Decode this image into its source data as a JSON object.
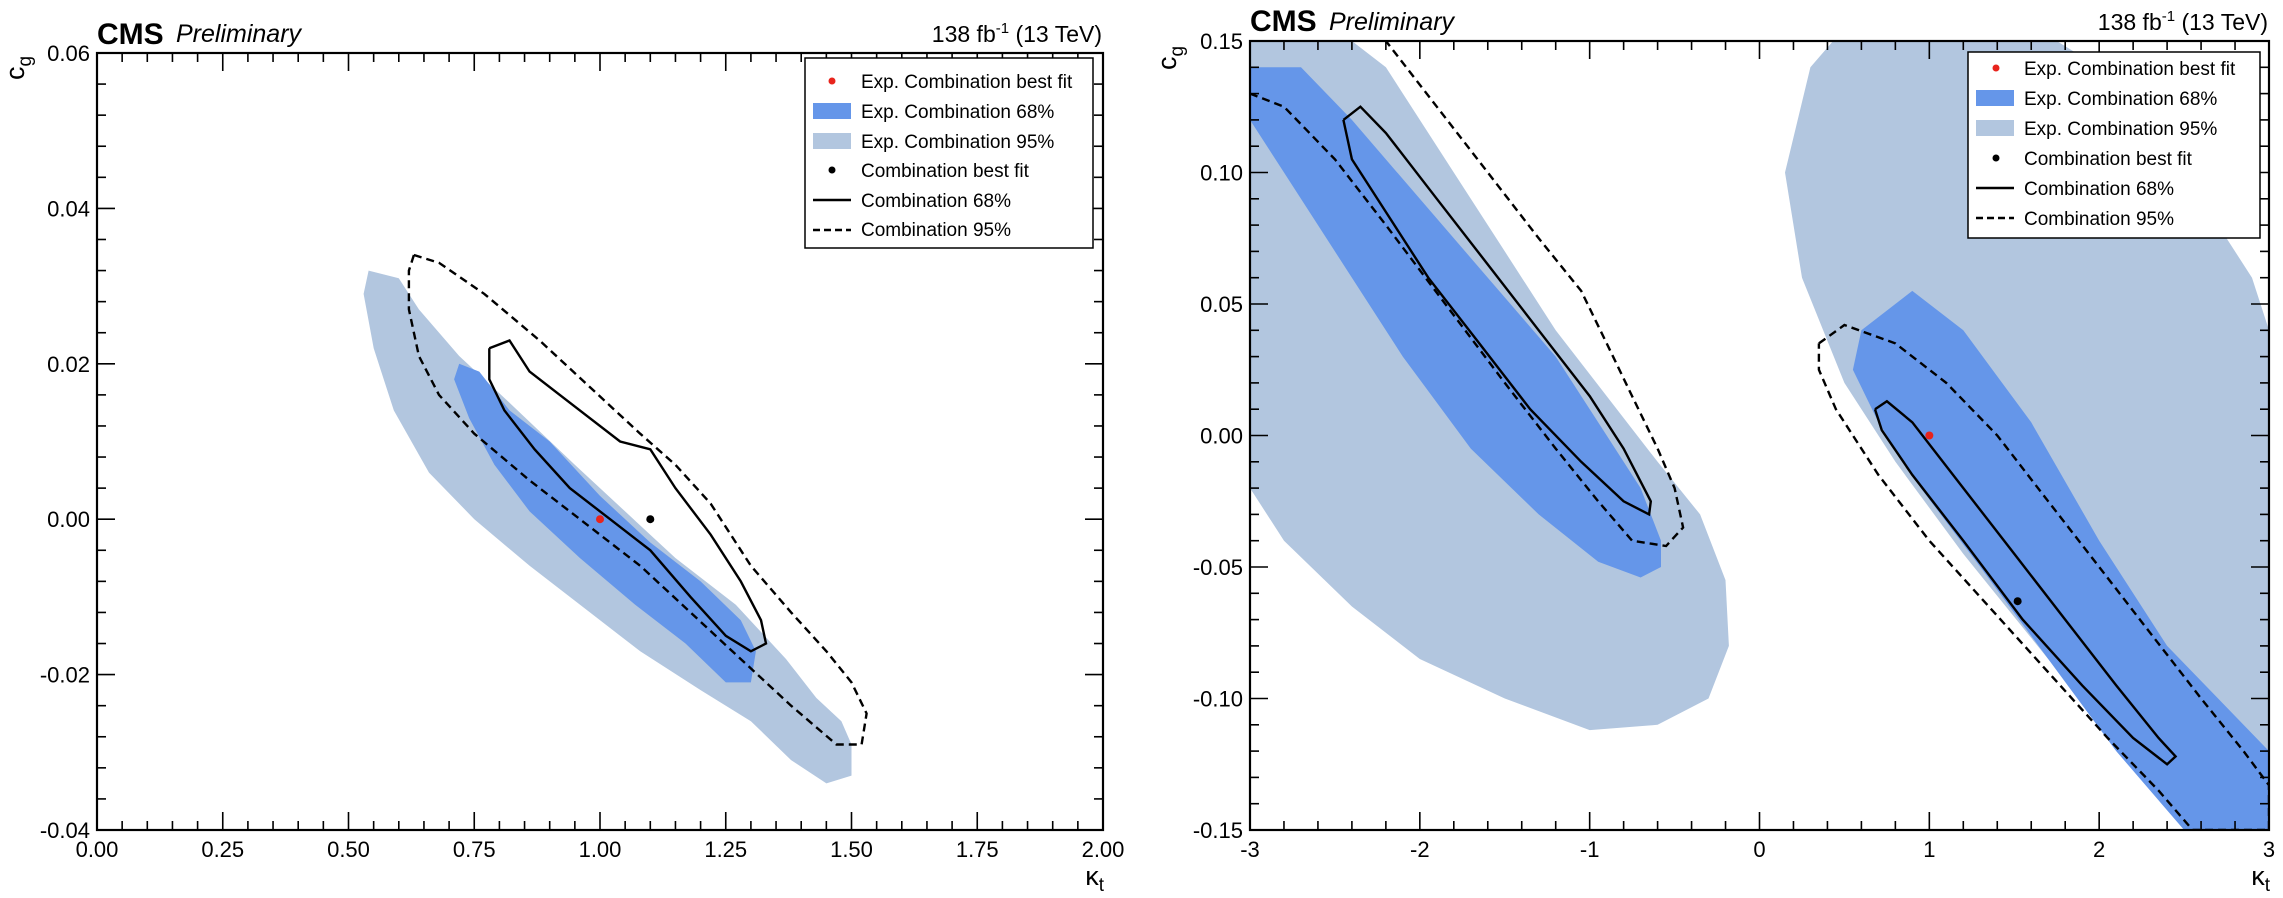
{
  "colors": {
    "exp68": "#6596e9",
    "exp95": "#b2c6df",
    "bestfit_exp": "#e8241c",
    "bestfit_obs": "#000000"
  },
  "chart_data": [
    {
      "type": "contour",
      "header": {
        "experiment": "CMS",
        "status": "Preliminary",
        "lumi": "138 fb",
        "lumi_exp": "-1",
        "energy": "(13 TeV)"
      },
      "xlabel": "κ",
      "xlabel_sub": "t",
      "ylabel": "c",
      "ylabel_sub": "g",
      "xlim": [
        0.0,
        2.0
      ],
      "ylim": [
        -0.04,
        0.06
      ],
      "xticks": [
        0.0,
        0.25,
        0.5,
        0.75,
        1.0,
        1.25,
        1.5,
        1.75,
        2.0
      ],
      "xtick_labels": [
        "0.00",
        "0.25",
        "0.50",
        "0.75",
        "1.00",
        "1.25",
        "1.50",
        "1.75",
        "2.00"
      ],
      "yticks": [
        -0.04,
        -0.02,
        0.0,
        0.02,
        0.04,
        0.06
      ],
      "ytick_labels": [
        "-0.04",
        "-0.02",
        "0.00",
        "0.02",
        "0.04",
        "0.06"
      ],
      "legend": [
        "Exp. Combination best fit",
        "Exp. Combination 68%",
        "Exp. Combination 95%",
        "Combination best fit",
        "Combination 68%",
        "Combination 95%"
      ],
      "legend_position": "top-right",
      "points": {
        "exp_bestfit": [
          1.0,
          0.0
        ],
        "obs_bestfit": [
          1.1,
          0.0
        ]
      },
      "regions": {
        "exp95": [
          [
            [
              0.54,
              0.032
            ],
            [
              0.6,
              0.031
            ],
            [
              0.64,
              0.027
            ],
            [
              0.72,
              0.021
            ],
            [
              0.82,
              0.015
            ],
            [
              0.95,
              0.007
            ],
            [
              1.05,
              0.001
            ],
            [
              1.15,
              -0.005
            ],
            [
              1.27,
              -0.011
            ],
            [
              1.37,
              -0.018
            ],
            [
              1.43,
              -0.023
            ],
            [
              1.48,
              -0.026
            ],
            [
              1.5,
              -0.029
            ],
            [
              1.5,
              -0.033
            ],
            [
              1.45,
              -0.034
            ],
            [
              1.38,
              -0.031
            ],
            [
              1.3,
              -0.026
            ],
            [
              1.2,
              -0.022
            ],
            [
              1.08,
              -0.017
            ],
            [
              0.98,
              -0.012
            ],
            [
              0.86,
              -0.006
            ],
            [
              0.75,
              0.0
            ],
            [
              0.66,
              0.006
            ],
            [
              0.59,
              0.014
            ],
            [
              0.55,
              0.022
            ],
            [
              0.53,
              0.029
            ]
          ]
        ],
        "exp68": [
          [
            [
              0.72,
              0.02
            ],
            [
              0.76,
              0.019
            ],
            [
              0.82,
              0.014
            ],
            [
              0.9,
              0.01
            ],
            [
              1.0,
              0.003
            ],
            [
              1.1,
              -0.003
            ],
            [
              1.2,
              -0.008
            ],
            [
              1.28,
              -0.013
            ],
            [
              1.31,
              -0.017
            ],
            [
              1.3,
              -0.021
            ],
            [
              1.25,
              -0.021
            ],
            [
              1.17,
              -0.016
            ],
            [
              1.07,
              -0.011
            ],
            [
              0.96,
              -0.005
            ],
            [
              0.86,
              0.001
            ],
            [
              0.79,
              0.007
            ],
            [
              0.74,
              0.013
            ],
            [
              0.71,
              0.018
            ]
          ]
        ]
      },
      "lines": {
        "obs68": [
          [
            0.78,
            0.022
          ],
          [
            0.82,
            0.023
          ],
          [
            0.86,
            0.019
          ],
          [
            0.92,
            0.016
          ],
          [
            0.98,
            0.013
          ],
          [
            1.04,
            0.01
          ],
          [
            1.1,
            0.009
          ],
          [
            1.15,
            0.004
          ],
          [
            1.22,
            -0.002
          ],
          [
            1.28,
            -0.008
          ],
          [
            1.32,
            -0.013
          ],
          [
            1.33,
            -0.016
          ],
          [
            1.3,
            -0.017
          ],
          [
            1.25,
            -0.015
          ],
          [
            1.18,
            -0.01
          ],
          [
            1.1,
            -0.004
          ],
          [
            1.02,
            0.0
          ],
          [
            0.94,
            0.004
          ],
          [
            0.87,
            0.009
          ],
          [
            0.81,
            0.014
          ],
          [
            0.78,
            0.018
          ],
          [
            0.78,
            0.022
          ]
        ],
        "obs95": [
          [
            0.63,
            0.034
          ],
          [
            0.68,
            0.033
          ],
          [
            0.77,
            0.029
          ],
          [
            0.88,
            0.023
          ],
          [
            0.98,
            0.017
          ],
          [
            1.08,
            0.011
          ],
          [
            1.15,
            0.007
          ],
          [
            1.22,
            0.002
          ],
          [
            1.3,
            -0.006
          ],
          [
            1.38,
            -0.012
          ],
          [
            1.45,
            -0.017
          ],
          [
            1.5,
            -0.021
          ],
          [
            1.53,
            -0.025
          ],
          [
            1.52,
            -0.029
          ],
          [
            1.47,
            -0.029
          ],
          [
            1.38,
            -0.024
          ],
          [
            1.28,
            -0.018
          ],
          [
            1.18,
            -0.012
          ],
          [
            1.08,
            -0.006
          ],
          [
            0.96,
            0.0
          ],
          [
            0.86,
            0.005
          ],
          [
            0.75,
            0.011
          ],
          [
            0.68,
            0.016
          ],
          [
            0.64,
            0.021
          ],
          [
            0.62,
            0.027
          ],
          [
            0.62,
            0.032
          ],
          [
            0.63,
            0.034
          ]
        ]
      }
    },
    {
      "type": "contour",
      "header": {
        "experiment": "CMS",
        "status": "Preliminary",
        "lumi": "138 fb",
        "lumi_exp": "-1",
        "energy": "(13 TeV)"
      },
      "xlabel": "κ",
      "xlabel_sub": "t",
      "ylabel": "c",
      "ylabel_sub": "g",
      "xlim": [
        -3,
        3
      ],
      "ylim": [
        -0.15,
        0.15
      ],
      "xticks": [
        -3,
        -2,
        -1,
        0,
        1,
        2,
        3
      ],
      "xtick_labels": [
        "-3",
        "-2",
        "-1",
        "0",
        "1",
        "2",
        "3"
      ],
      "yticks": [
        -0.15,
        -0.1,
        -0.05,
        0.0,
        0.05,
        0.1,
        0.15
      ],
      "ytick_labels": [
        "-0.15",
        "-0.10",
        "-0.05",
        "0.00",
        "0.05",
        "0.10",
        "0.15"
      ],
      "legend": [
        "Exp. Combination best fit",
        "Exp. Combination 68%",
        "Exp. Combination 95%",
        "Combination best fit",
        "Combination 68%",
        "Combination 95%"
      ],
      "legend_position": "top-right",
      "points": {
        "exp_bestfit": [
          1.0,
          0.0
        ],
        "obs_bestfit": [
          1.52,
          -0.063
        ]
      },
      "regions": {
        "exp95": [
          [
            [
              -3,
              0.15
            ],
            [
              -2.4,
              0.15
            ],
            [
              -2.2,
              0.14
            ],
            [
              -1.8,
              0.1
            ],
            [
              -1.5,
              0.07
            ],
            [
              -1.2,
              0.04
            ],
            [
              -0.9,
              0.015
            ],
            [
              -0.6,
              -0.01
            ],
            [
              -0.35,
              -0.03
            ],
            [
              -0.2,
              -0.055
            ],
            [
              -0.18,
              -0.08
            ],
            [
              -0.3,
              -0.1
            ],
            [
              -0.6,
              -0.11
            ],
            [
              -1.0,
              -0.112
            ],
            [
              -1.5,
              -0.1
            ],
            [
              -2.0,
              -0.085
            ],
            [
              -2.4,
              -0.065
            ],
            [
              -2.8,
              -0.04
            ],
            [
              -3,
              -0.02
            ]
          ],
          [
            [
              0.3,
              0.14
            ],
            [
              0.5,
              0.155
            ],
            [
              1.0,
              0.165
            ],
            [
              1.5,
              0.16
            ],
            [
              2.0,
              0.14
            ],
            [
              2.5,
              0.1
            ],
            [
              2.9,
              0.06
            ],
            [
              3,
              0.04
            ],
            [
              3,
              -0.15
            ],
            [
              2.6,
              -0.15
            ],
            [
              2.2,
              -0.12
            ],
            [
              1.7,
              -0.085
            ],
            [
              1.2,
              -0.045
            ],
            [
              0.8,
              -0.01
            ],
            [
              0.5,
              0.02
            ],
            [
              0.25,
              0.06
            ],
            [
              0.15,
              0.1
            ]
          ]
        ],
        "exp68": [
          [
            [
              -3,
              0.14
            ],
            [
              -2.7,
              0.14
            ],
            [
              -2.4,
              0.12
            ],
            [
              -2.0,
              0.09
            ],
            [
              -1.6,
              0.06
            ],
            [
              -1.2,
              0.03
            ],
            [
              -0.9,
              0.0
            ],
            [
              -0.7,
              -0.02
            ],
            [
              -0.58,
              -0.04
            ],
            [
              -0.58,
              -0.05
            ],
            [
              -0.7,
              -0.054
            ],
            [
              -0.95,
              -0.048
            ],
            [
              -1.3,
              -0.03
            ],
            [
              -1.7,
              -0.005
            ],
            [
              -2.1,
              0.03
            ],
            [
              -2.5,
              0.07
            ],
            [
              -2.8,
              0.1
            ],
            [
              -3,
              0.12
            ]
          ],
          [
            [
              0.6,
              0.04
            ],
            [
              0.9,
              0.055
            ],
            [
              1.2,
              0.04
            ],
            [
              1.6,
              0.005
            ],
            [
              2.0,
              -0.04
            ],
            [
              2.4,
              -0.08
            ],
            [
              2.7,
              -0.1
            ],
            [
              3,
              -0.12
            ],
            [
              3,
              -0.15
            ],
            [
              2.5,
              -0.15
            ],
            [
              2.1,
              -0.12
            ],
            [
              1.7,
              -0.085
            ],
            [
              1.3,
              -0.05
            ],
            [
              0.95,
              -0.02
            ],
            [
              0.7,
              0.005
            ],
            [
              0.55,
              0.025
            ]
          ]
        ]
      },
      "lines": {
        "obs68": [
          [
            [
              -2.45,
              0.12
            ],
            [
              -2.35,
              0.125
            ],
            [
              -2.2,
              0.115
            ],
            [
              -1.9,
              0.09
            ],
            [
              -1.6,
              0.065
            ],
            [
              -1.3,
              0.04
            ],
            [
              -1.0,
              0.015
            ],
            [
              -0.8,
              -0.005
            ],
            [
              -0.64,
              -0.025
            ],
            [
              -0.65,
              -0.03
            ],
            [
              -0.8,
              -0.025
            ],
            [
              -1.05,
              -0.01
            ],
            [
              -1.35,
              0.01
            ],
            [
              -1.65,
              0.035
            ],
            [
              -1.95,
              0.06
            ],
            [
              -2.2,
              0.085
            ],
            [
              -2.4,
              0.105
            ],
            [
              -2.45,
              0.12
            ]
          ],
          [
            [
              0.68,
              0.01
            ],
            [
              0.75,
              0.013
            ],
            [
              0.9,
              0.005
            ],
            [
              1.2,
              -0.02
            ],
            [
              1.5,
              -0.045
            ],
            [
              1.8,
              -0.07
            ],
            [
              2.1,
              -0.095
            ],
            [
              2.35,
              -0.115
            ],
            [
              2.45,
              -0.122
            ],
            [
              2.4,
              -0.125
            ],
            [
              2.2,
              -0.115
            ],
            [
              1.9,
              -0.095
            ],
            [
              1.55,
              -0.07
            ],
            [
              1.2,
              -0.04
            ],
            [
              0.9,
              -0.015
            ],
            [
              0.72,
              0.002
            ],
            [
              0.68,
              0.01
            ]
          ]
        ],
        "obs95": [
          [
            [
              -3,
              0.13
            ],
            [
              -2.8,
              0.125
            ],
            [
              -2.5,
              0.105
            ],
            [
              -2.2,
              0.08
            ],
            [
              -1.85,
              0.05
            ],
            [
              -1.5,
              0.02
            ],
            [
              -1.2,
              -0.005
            ],
            [
              -0.95,
              -0.025
            ],
            [
              -0.75,
              -0.04
            ],
            [
              -0.55,
              -0.042
            ],
            [
              -0.45,
              -0.035
            ],
            [
              -0.5,
              -0.02
            ],
            [
              -0.6,
              -0.005
            ],
            [
              -0.75,
              0.015
            ],
            [
              -0.9,
              0.035
            ],
            [
              -1.05,
              0.055
            ],
            [
              -1.3,
              0.075
            ],
            [
              -1.6,
              0.1
            ],
            [
              -1.9,
              0.125
            ],
            [
              -2.2,
              0.15
            ]
          ],
          [
            [
              0.35,
              0.035
            ],
            [
              0.5,
              0.042
            ],
            [
              0.8,
              0.035
            ],
            [
              1.1,
              0.02
            ],
            [
              1.4,
              0.0
            ],
            [
              1.7,
              -0.025
            ],
            [
              2.0,
              -0.05
            ],
            [
              2.3,
              -0.075
            ],
            [
              2.6,
              -0.1
            ],
            [
              2.85,
              -0.12
            ],
            [
              3,
              -0.133
            ],
            [
              3,
              -0.15
            ],
            [
              2.55,
              -0.15
            ],
            [
              2.35,
              -0.135
            ],
            [
              2.05,
              -0.115
            ],
            [
              1.7,
              -0.09
            ],
            [
              1.35,
              -0.065
            ],
            [
              1.0,
              -0.04
            ],
            [
              0.7,
              -0.015
            ],
            [
              0.45,
              0.01
            ],
            [
              0.35,
              0.025
            ],
            [
              0.35,
              0.035
            ]
          ]
        ]
      }
    }
  ]
}
